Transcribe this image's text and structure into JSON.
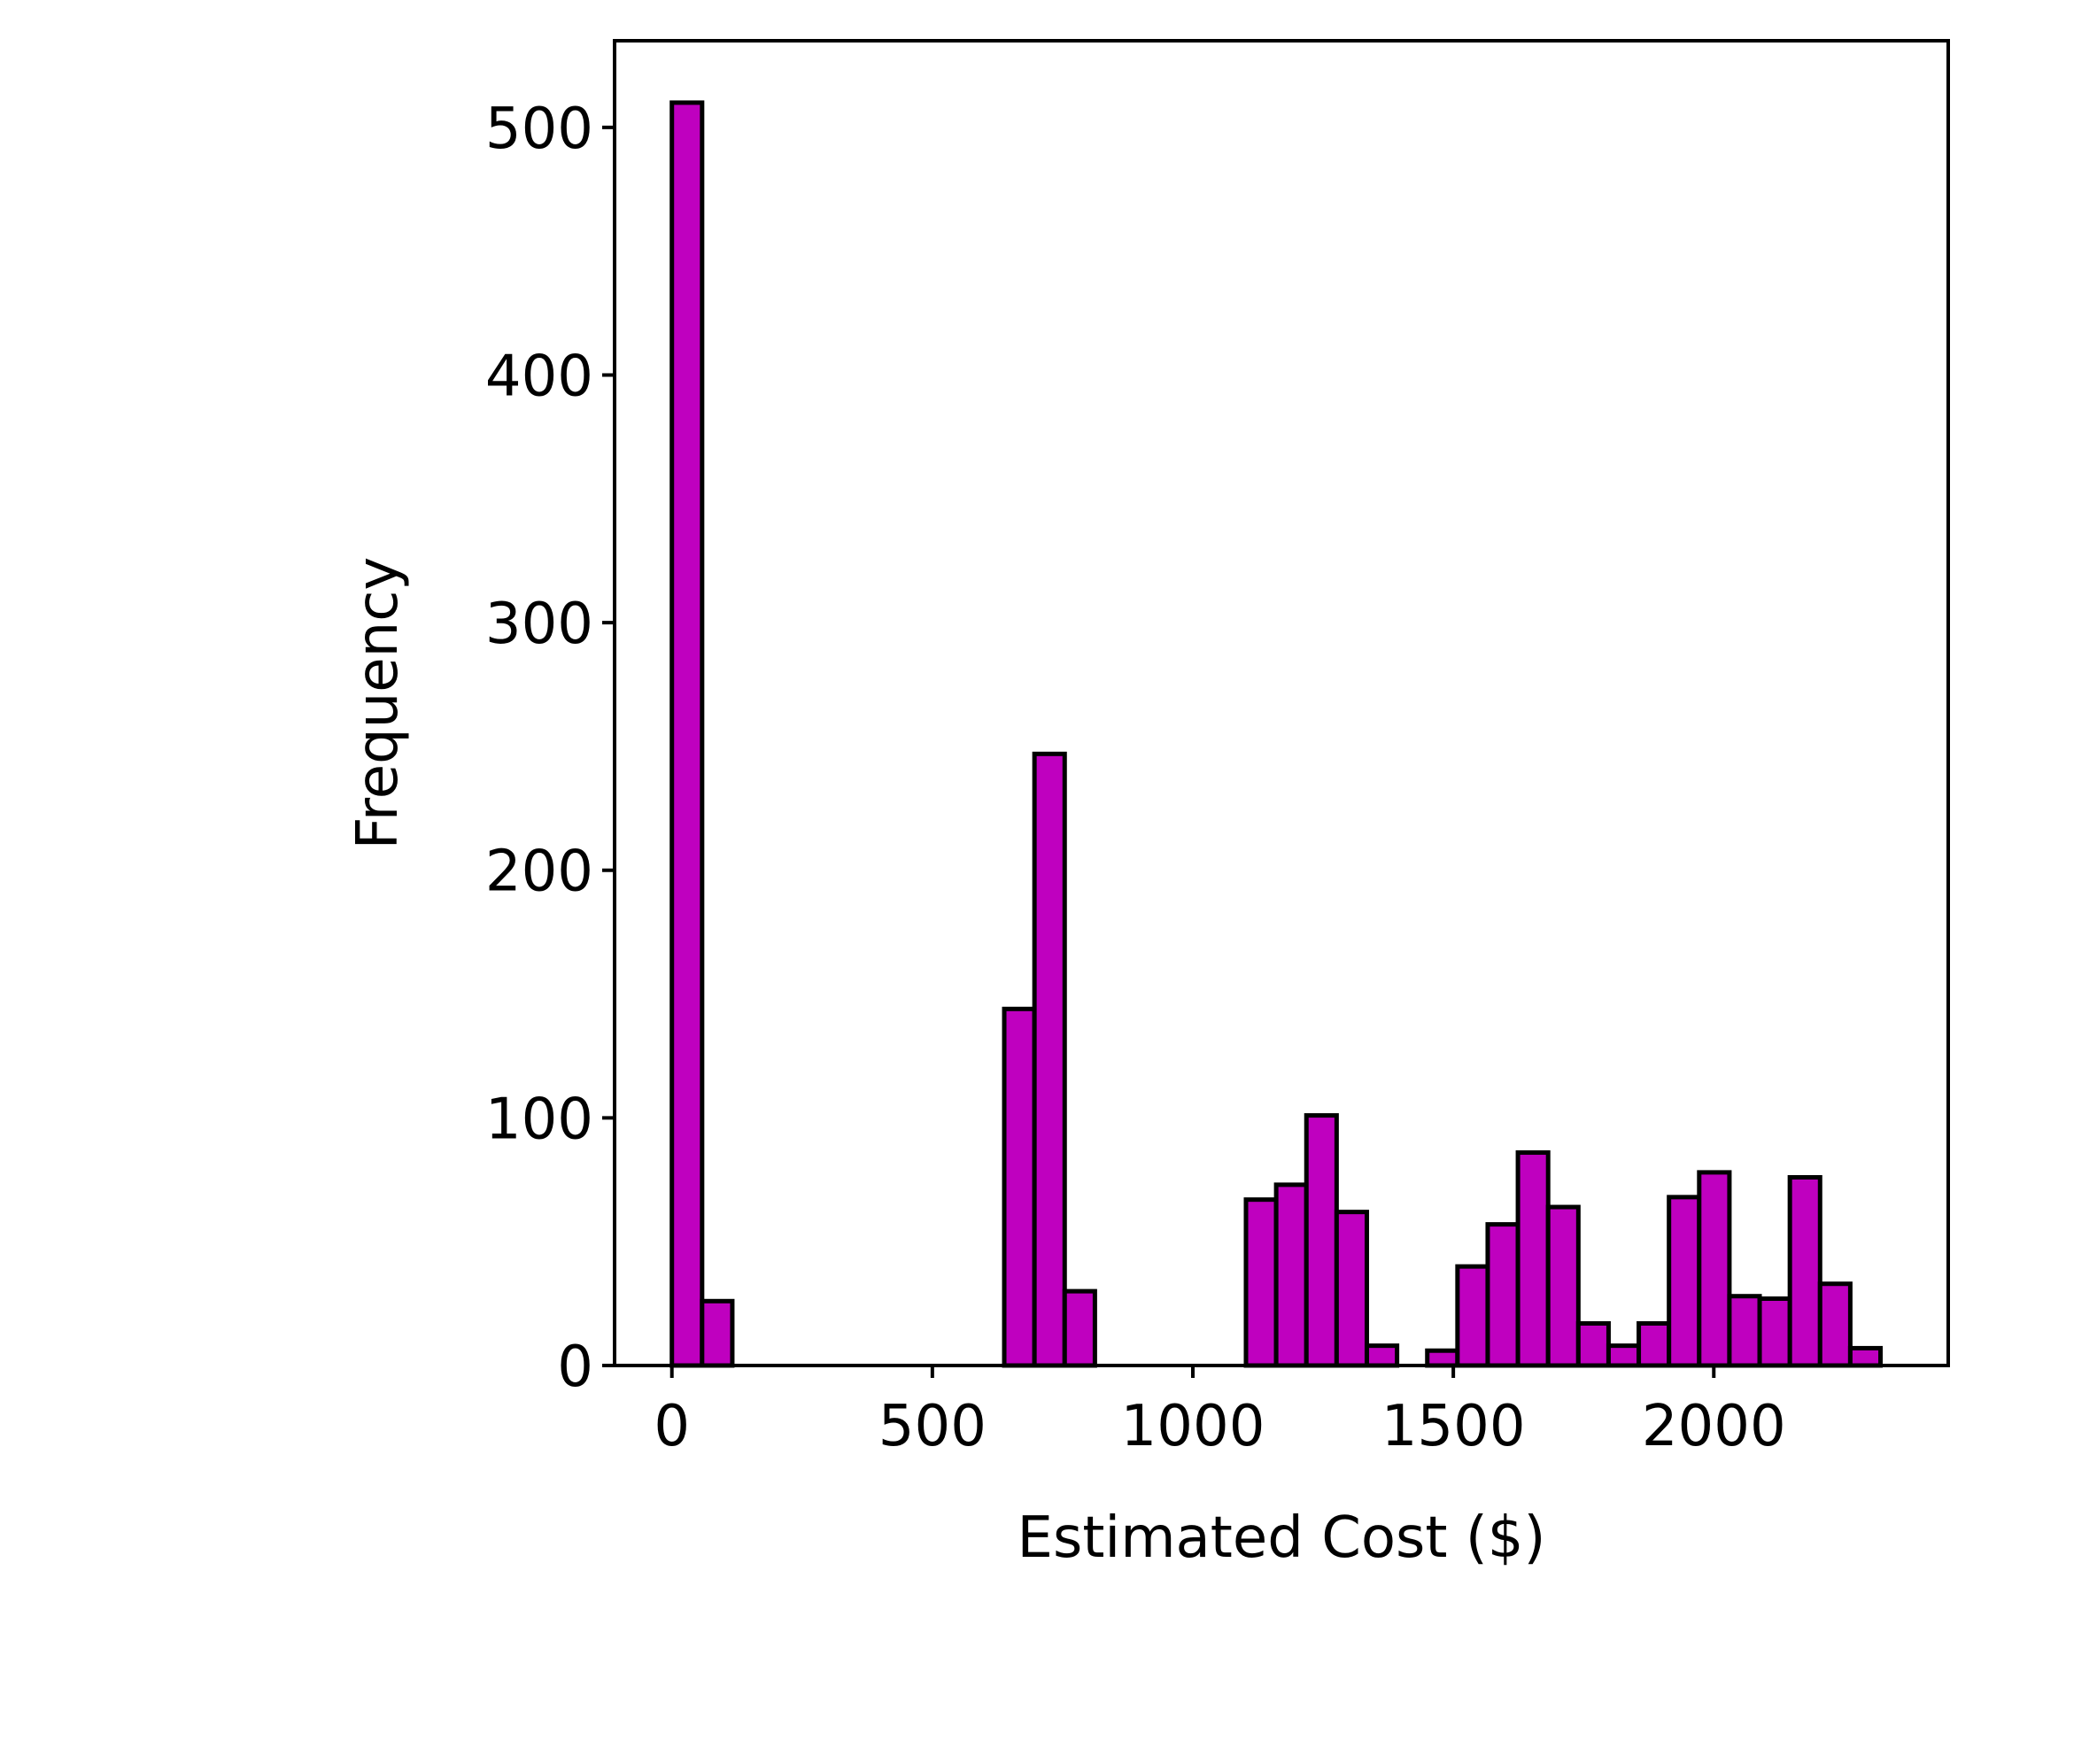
{
  "chart_data": {
    "type": "bar",
    "title": "",
    "xlabel": "Estimated Cost ($)",
    "ylabel": "Frequency",
    "xlim": [
      -110,
      2450
    ],
    "ylim": [
      0,
      535
    ],
    "xticks": [
      0,
      500,
      1000,
      1500,
      2000
    ],
    "yticks": [
      0,
      100,
      200,
      300,
      400,
      500
    ],
    "grid": false,
    "legend": "none",
    "bar_color": "#bf00bf",
    "edge_color": "#000000",
    "bin_width": 58,
    "bins": [
      {
        "x0": 0,
        "count": 510
      },
      {
        "x0": 58,
        "count": 26
      },
      {
        "x0": 116,
        "count": 0
      },
      {
        "x0": 174,
        "count": 0
      },
      {
        "x0": 232,
        "count": 0
      },
      {
        "x0": 290,
        "count": 0
      },
      {
        "x0": 348,
        "count": 0
      },
      {
        "x0": 406,
        "count": 0
      },
      {
        "x0": 464,
        "count": 0
      },
      {
        "x0": 522,
        "count": 0
      },
      {
        "x0": 580,
        "count": 0
      },
      {
        "x0": 638,
        "count": 144
      },
      {
        "x0": 696,
        "count": 247
      },
      {
        "x0": 754,
        "count": 30
      },
      {
        "x0": 812,
        "count": 0
      },
      {
        "x0": 870,
        "count": 0
      },
      {
        "x0": 928,
        "count": 0
      },
      {
        "x0": 986,
        "count": 0
      },
      {
        "x0": 1044,
        "count": 0
      },
      {
        "x0": 1102,
        "count": 67
      },
      {
        "x0": 1160,
        "count": 73
      },
      {
        "x0": 1218,
        "count": 101
      },
      {
        "x0": 1276,
        "count": 62
      },
      {
        "x0": 1334,
        "count": 8
      },
      {
        "x0": 1392,
        "count": 0
      },
      {
        "x0": 1450,
        "count": 6
      },
      {
        "x0": 1508,
        "count": 40
      },
      {
        "x0": 1566,
        "count": 57
      },
      {
        "x0": 1624,
        "count": 86
      },
      {
        "x0": 1682,
        "count": 64
      },
      {
        "x0": 1740,
        "count": 17
      },
      {
        "x0": 1798,
        "count": 8
      },
      {
        "x0": 1856,
        "count": 17
      },
      {
        "x0": 1914,
        "count": 68
      },
      {
        "x0": 1972,
        "count": 78
      },
      {
        "x0": 2030,
        "count": 28
      },
      {
        "x0": 2088,
        "count": 27
      },
      {
        "x0": 2146,
        "count": 76
      },
      {
        "x0": 2204,
        "count": 33
      },
      {
        "x0": 2262,
        "count": 7
      }
    ]
  }
}
